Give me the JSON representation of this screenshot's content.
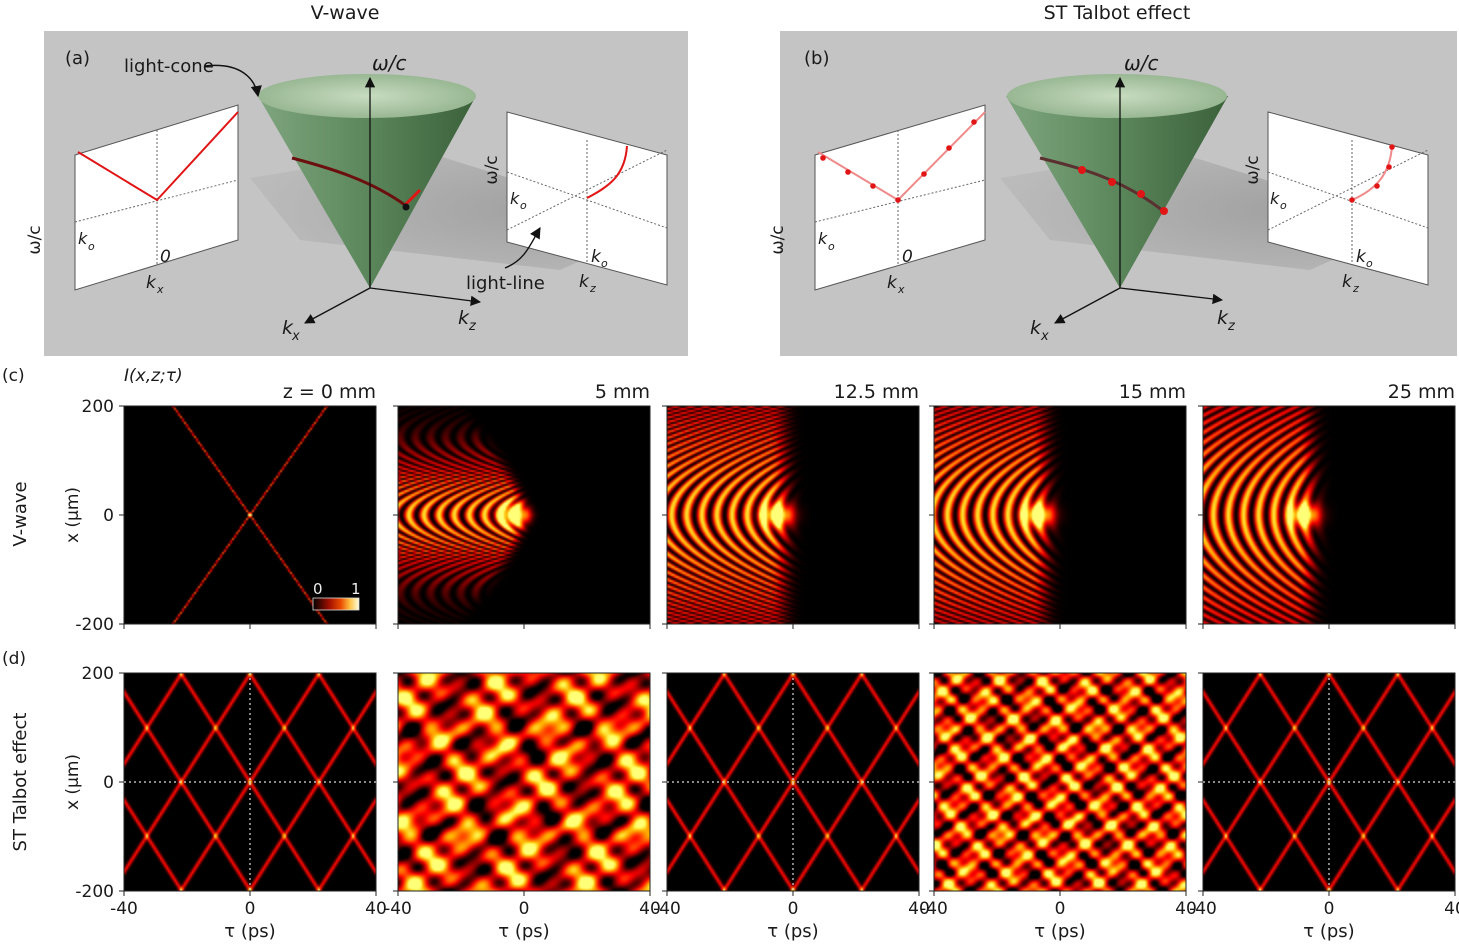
{
  "top_row": {
    "panel_a": {
      "title": "V-wave",
      "label": "(a)",
      "light_cone_label": "light-cone",
      "light_line_label": "light-line",
      "axis_omega": "ω/c",
      "axis_kx": "k",
      "axis_kx_sub": "x",
      "axis_kz": "k",
      "axis_kz_sub": "z",
      "left_plane": {
        "ylabel": "ω/c",
        "k0": "k",
        "k0_sub": "o",
        "zero": "0",
        "xlabel": "k",
        "xlabel_sub": "x"
      },
      "right_plane": {
        "ylabel": "ω/c",
        "k0": "k",
        "k0_sub": "o",
        "k0_x": "k",
        "k0_x_sub": "o",
        "xlabel": "k",
        "xlabel_sub": "z"
      }
    },
    "panel_b": {
      "title": "ST Talbot effect",
      "label": "(b)",
      "axis_omega": "ω/c",
      "axis_kx": "k",
      "axis_kx_sub": "x",
      "axis_kz": "k",
      "axis_kz_sub": "z",
      "left_plane": {
        "ylabel": "ω/c",
        "k0": "k",
        "k0_sub": "o",
        "zero": "0",
        "xlabel": "k",
        "xlabel_sub": "x"
      },
      "right_plane": {
        "ylabel": "ω/c",
        "k0": "k",
        "k0_sub": "o",
        "k0_x": "k",
        "k0_x_sub": "o",
        "xlabel": "k",
        "xlabel_sub": "z"
      }
    }
  },
  "row_c": {
    "label": "(c)",
    "intensity_label": "I(x,z;τ)",
    "row_label": "V-wave",
    "colorbar": {
      "min": "0",
      "max": "1"
    }
  },
  "row_d": {
    "label": "(d)",
    "row_label": "ST Talbot effect"
  },
  "z_labels": [
    "z = 0 mm",
    "5 mm",
    "12.5 mm",
    "15 mm",
    "25 mm"
  ],
  "ylabel": "x (μm)",
  "xlabel": "τ (ps)",
  "yticks": [
    "200",
    "0",
    "-200"
  ],
  "xticks": [
    "-40",
    "0",
    "40"
  ],
  "colors": {
    "panel_bg": "#c4c4c4",
    "cone": "#4f7a4f",
    "curve": "#e11515",
    "map_hot": "#ffff80",
    "map_mid": "#c81a00"
  },
  "chart_data": [
    {
      "type": "heatmap",
      "row": "c",
      "z_mm": 0,
      "xlim": [
        -40,
        40
      ],
      "ylim": [
        -200,
        200
      ],
      "xlabel": "τ (ps)",
      "ylabel": "x (μm)"
    },
    {
      "type": "heatmap",
      "row": "c",
      "z_mm": 5,
      "xlim": [
        -40,
        40
      ],
      "ylim": [
        -200,
        200
      ],
      "xlabel": "τ (ps)"
    },
    {
      "type": "heatmap",
      "row": "c",
      "z_mm": 12.5,
      "xlim": [
        -40,
        40
      ],
      "ylim": [
        -200,
        200
      ],
      "xlabel": "τ (ps)"
    },
    {
      "type": "heatmap",
      "row": "c",
      "z_mm": 15,
      "xlim": [
        -40,
        40
      ],
      "ylim": [
        -200,
        200
      ],
      "xlabel": "τ (ps)"
    },
    {
      "type": "heatmap",
      "row": "c",
      "z_mm": 25,
      "xlim": [
        -40,
        40
      ],
      "ylim": [
        -200,
        200
      ],
      "xlabel": "τ (ps)"
    },
    {
      "type": "heatmap",
      "row": "d",
      "z_mm": 0,
      "xlim": [
        -40,
        40
      ],
      "ylim": [
        -200,
        200
      ],
      "xlabel": "τ (ps)",
      "ylabel": "x (μm)"
    },
    {
      "type": "heatmap",
      "row": "d",
      "z_mm": 5,
      "xlim": [
        -40,
        40
      ],
      "ylim": [
        -200,
        200
      ],
      "xlabel": "τ (ps)"
    },
    {
      "type": "heatmap",
      "row": "d",
      "z_mm": 12.5,
      "xlim": [
        -40,
        40
      ],
      "ylim": [
        -200,
        200
      ],
      "xlabel": "τ (ps)"
    },
    {
      "type": "heatmap",
      "row": "d",
      "z_mm": 15,
      "xlim": [
        -40,
        40
      ],
      "ylim": [
        -200,
        200
      ],
      "xlabel": "τ (ps)"
    },
    {
      "type": "heatmap",
      "row": "d",
      "z_mm": 25,
      "xlim": [
        -40,
        40
      ],
      "ylim": [
        -200,
        200
      ],
      "xlabel": "τ (ps)"
    }
  ]
}
